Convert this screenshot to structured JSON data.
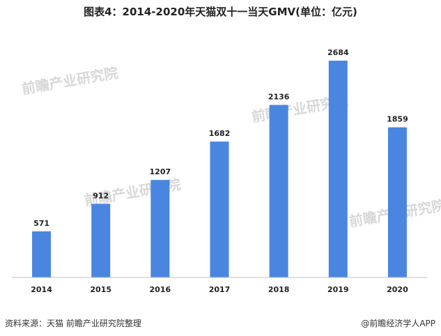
{
  "title": "图表4：2014-2020年天猫双十一当天GMV(单位：亿元)",
  "source": "资料来源：天猫 前瞻产业研究院整理",
  "brand": "@前瞻经济学人APP",
  "watermark": "前瞻产业研究院",
  "colors": {
    "bar": "#4a86e0",
    "axis": "#bfbfbf",
    "label": "#222222"
  },
  "chart_data": {
    "type": "bar",
    "title": "图表4：2014-2020年天猫双十一当天GMV(单位：亿元)",
    "categories": [
      "2014",
      "2015",
      "2016",
      "2017",
      "2018",
      "2019",
      "2020"
    ],
    "values": [
      571,
      912,
      1207,
      1682,
      2136,
      2684,
      1859
    ],
    "xlabel": "",
    "ylabel": "",
    "ylim": [
      0,
      2900
    ],
    "grid": false,
    "data_labels": true
  }
}
